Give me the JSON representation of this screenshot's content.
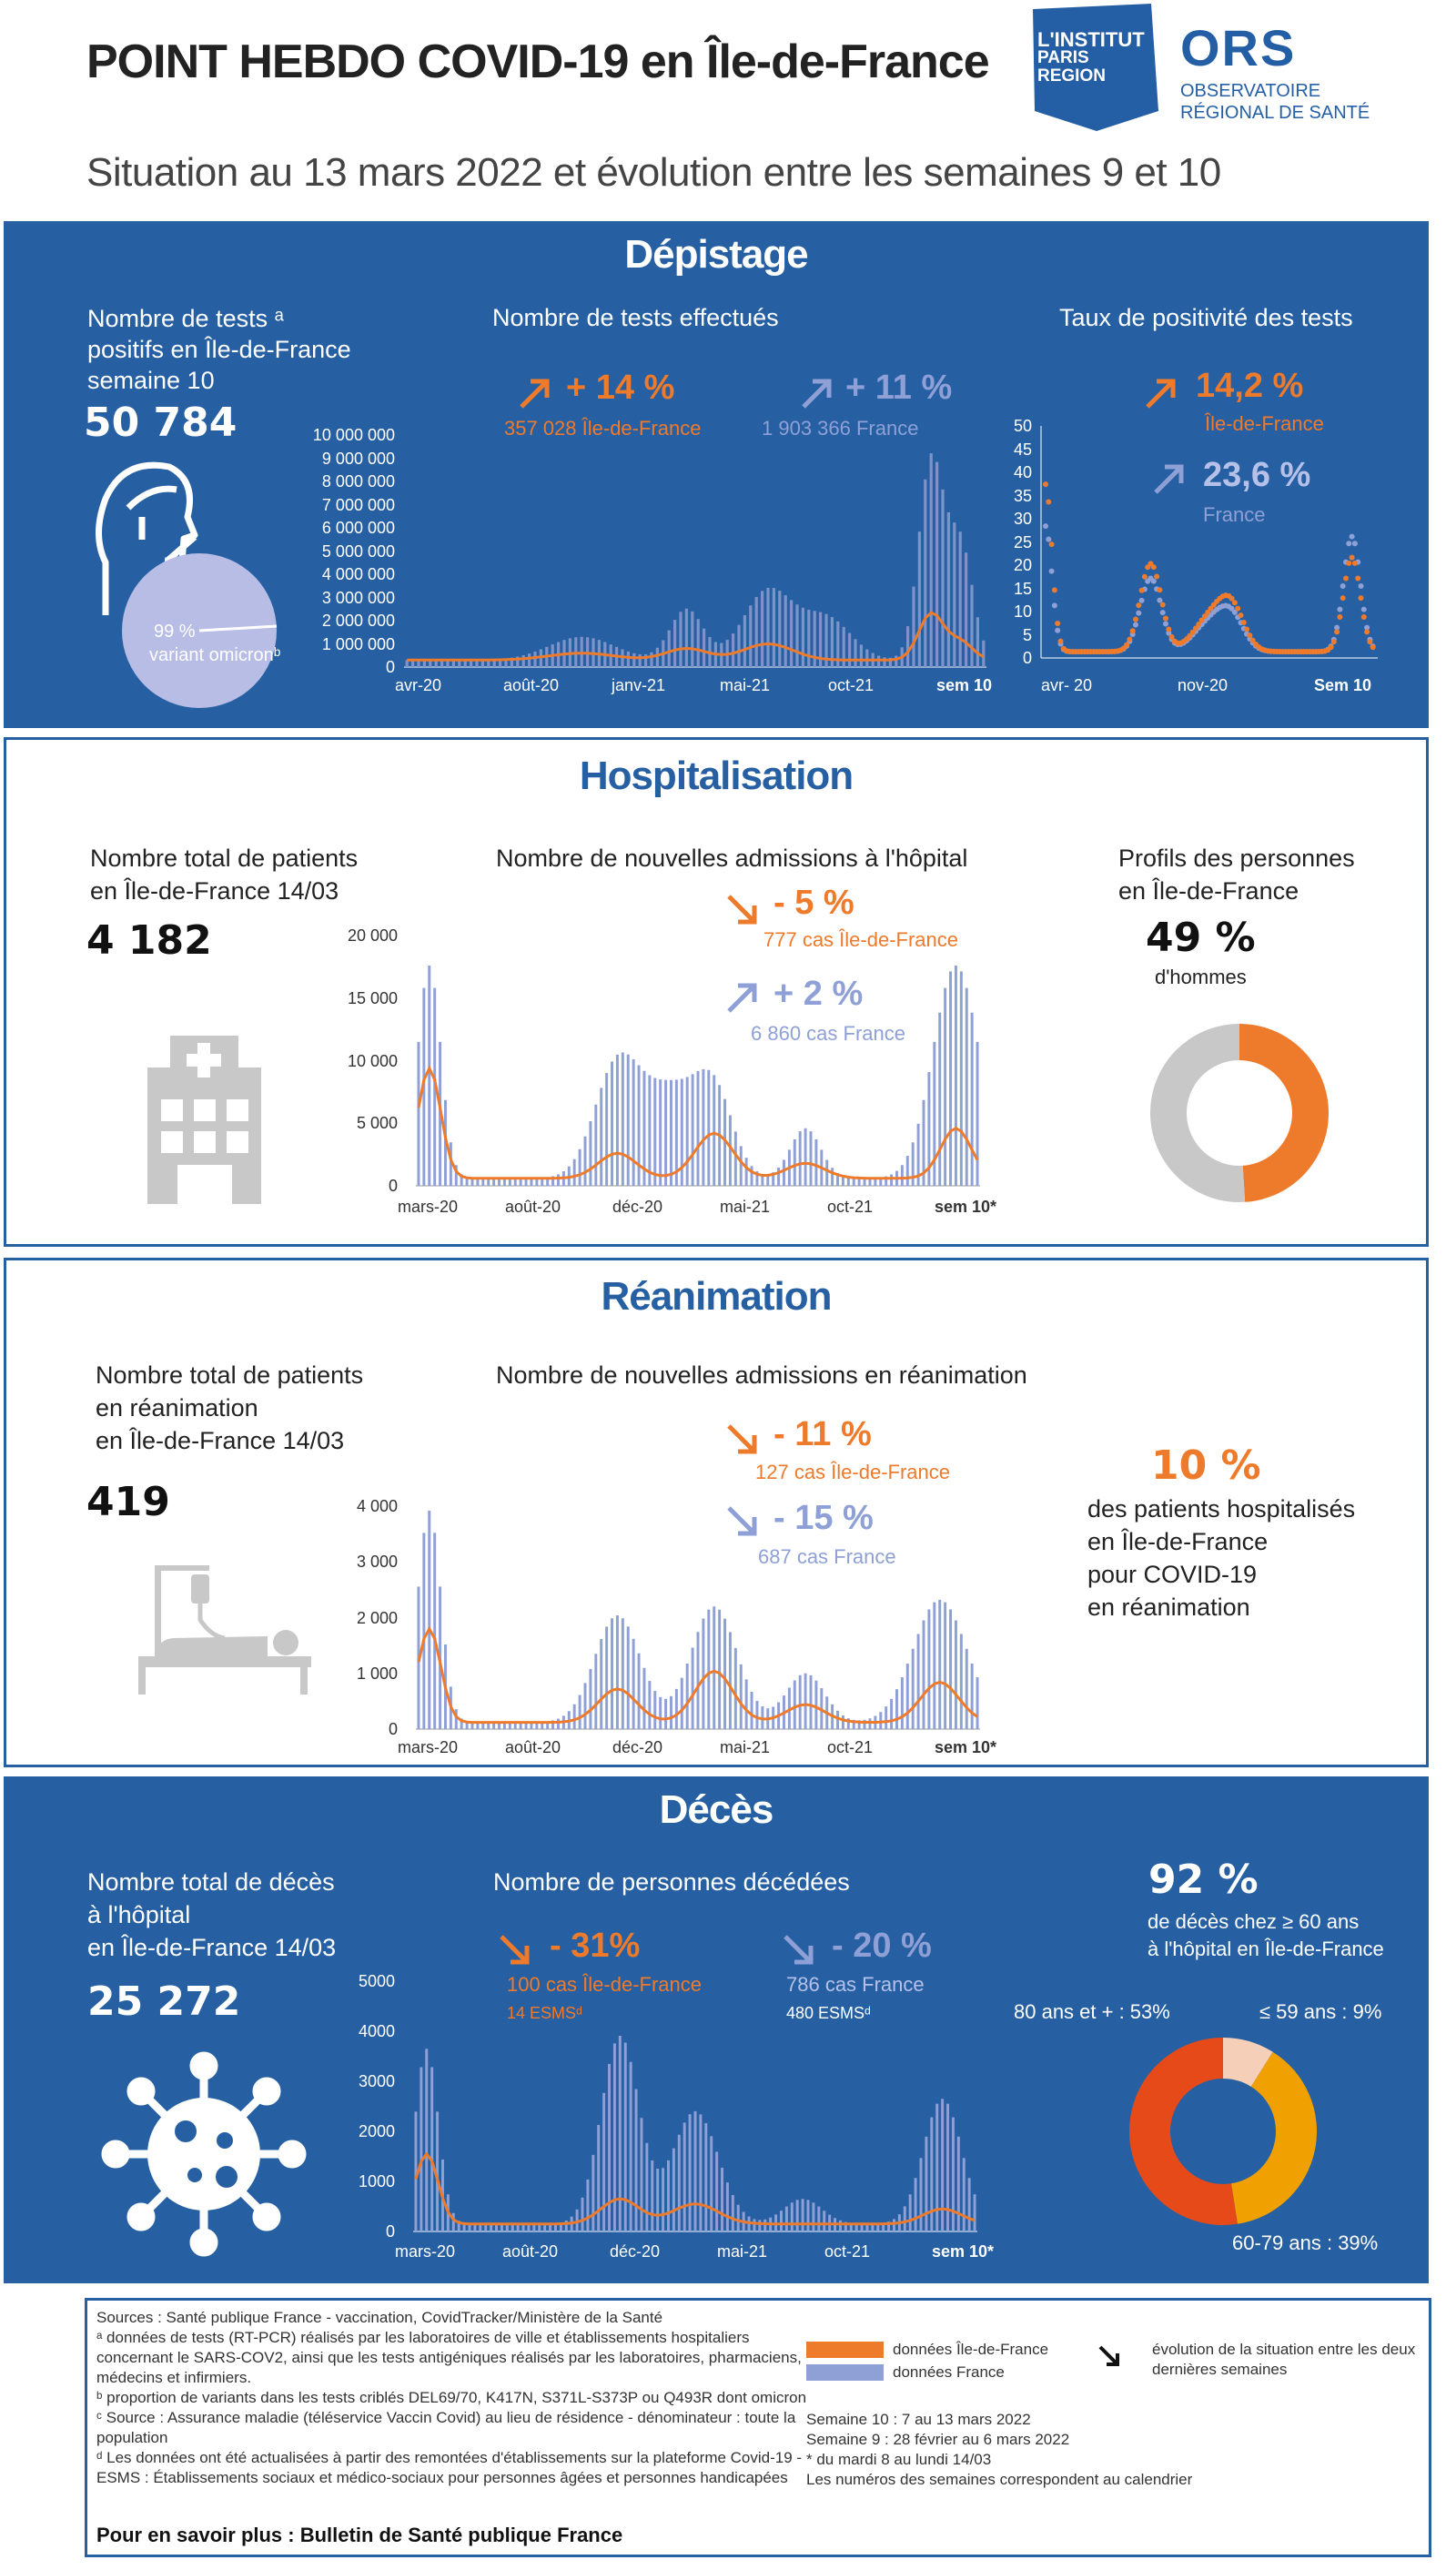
{
  "header": {
    "title": "POINT HEBDO COVID-19 en Île-de-France",
    "subtitle": "Situation au 13 mars 2022 et évolution entre les semaines 9 et 10",
    "logo_institut": [
      "L'INSTITUT",
      "PARIS",
      "REGION"
    ],
    "logo_ors": "ORS",
    "logo_ors_sub": [
      "OBSERVATOIRE",
      "RÉGIONAL DE SANTÉ"
    ]
  },
  "depistage": {
    "title": "Dépistage",
    "positive_label": [
      "Nombre de tests ᵃ",
      "positifs en Île-de-France",
      "semaine 10"
    ],
    "positive_value": "50 784",
    "omicron_pct": "99 %",
    "omicron_label": "variant omicronᵇ",
    "tests_title": "Nombre de tests effectués",
    "idf_change": "+ 14 %",
    "idf_count": "357 028 Île-de-France",
    "fr_change": "+ 11 %",
    "fr_count": "1 903 366  France",
    "tests_yticks": [
      "10 000 000",
      "9 000 000",
      "8 000 000",
      "7 000 000",
      "6 000 000",
      "5 000 000",
      "4 000 000",
      "3 000 000",
      "2 000 000",
      "1 000 000",
      "0"
    ],
    "tests_xticks": [
      "avr-20",
      "août-20",
      "janv-21",
      "mai-21",
      "oct-21",
      "sem 10"
    ],
    "pos_title": "Taux de positivité des tests",
    "pos_idf_value": "14,2 %",
    "pos_idf_label": "Île-de-France",
    "pos_fr_value": "23,6 %",
    "pos_fr_label": "France",
    "pos_yticks": [
      "50",
      "45",
      "40",
      "35",
      "30",
      "25",
      "20",
      "15",
      "10",
      "5",
      "0"
    ],
    "pos_xticks": [
      "avr- 20",
      "nov-20",
      "Sem 10"
    ]
  },
  "hospitalisation": {
    "title": "Hospitalisation",
    "total_label": [
      "Nombre total de patients",
      "en Île-de-France 14/03"
    ],
    "total_value": "4 182",
    "chart_title": "Nombre de nouvelles admissions à l'hôpital",
    "idf_change": "- 5 %",
    "idf_count": "777 cas Île-de-France",
    "fr_change": "+ 2 %",
    "fr_count": "6 860 cas France",
    "yticks": [
      "20 000",
      "15 000",
      "10 000",
      "5 000",
      "0"
    ],
    "xticks": [
      "mars-20",
      "août-20",
      "déc-20",
      "mai-21",
      "oct-21",
      "sem 10*"
    ],
    "profile_title": [
      "Profils des personnes",
      "en Île-de-France"
    ],
    "men_pct": "49 %",
    "men_label": "d'hommes",
    "men_fraction": 0.49
  },
  "reanimation": {
    "title": "Réanimation",
    "total_label": [
      "Nombre total de patients",
      "en réanimation",
      "en Île-de-France 14/03"
    ],
    "total_value": "419",
    "chart_title": "Nombre de nouvelles admissions en réanimation",
    "idf_change": "- 11 %",
    "idf_count": "127 cas Île-de-France",
    "fr_change": "- 15 %",
    "fr_count": "687 cas France",
    "yticks": [
      "4 000",
      "3 000",
      "2 000",
      "1 000",
      "0"
    ],
    "xticks": [
      "mars-20",
      "août-20",
      "déc-20",
      "mai-21",
      "oct-21",
      "sem 10*"
    ],
    "share_pct": "10 %",
    "share_label": [
      "des patients hospitalisés",
      "en Île-de-France",
      "pour COVID-19",
      "en réanimation"
    ]
  },
  "deces": {
    "title": "Décès",
    "total_label": [
      "Nombre total de décès",
      "à l'hôpital",
      "en Île-de-France 14/03"
    ],
    "total_value": "25 272",
    "chart_title": "Nombre de personnes décédées",
    "idf_change": "- 31%",
    "idf_count": "100 cas Île-de-France",
    "idf_esms": "14 ESMSᵈ",
    "fr_change": "- 20 %",
    "fr_count": "786 cas France",
    "fr_esms": "480 ESMSᵈ",
    "yticks": [
      "5000",
      "4000",
      "3000",
      "2000",
      "1000",
      "0"
    ],
    "xticks": [
      "mars-20",
      "août-20",
      "déc-20",
      "mai-21",
      "oct-21",
      "sem 10*"
    ],
    "old_pct": "92 %",
    "old_label": [
      "de décès chez ≥ 60 ans",
      "à l'hôpital en Île-de-France"
    ],
    "age_labels": [
      "80 ans et + : 53%",
      "≤ 59 ans : 9%",
      "60-79 ans : 39%"
    ],
    "age_shares": [
      53,
      9,
      39
    ]
  },
  "footer": {
    "sources": [
      "Sources : Santé publique France - vaccination, CovidTracker/Ministère de la Santé",
      "ᵃ  données de tests (RT-PCR) réalisés par les laboratoires de ville et établissements hospitaliers",
      "concernant le SARS-COV2, ainsi que les tests antigéniques réalisés par les laboratoires, pharmaciens,",
      "médecins et infirmiers.",
      " ᵇ proportion de variants dans les tests criblés DEL69/70, K417N, S371L-S373P ou Q493R dont omicron",
      "ᶜ Source : Assurance maladie (téléservice Vaccin Covid) au lieu de résidence - dénominateur : toute la population",
      "ᵈ Les données ont été actualisées à partir des remontées d'établissements sur la plateforme Covid-19 -",
      "ESMS : Établissements sociaux et  médico-sociaux pour personnes âgées et personnes handicapées"
    ],
    "more": "Pour en savoir plus : Bulletin de Santé publique France",
    "legend_idf": "données Île-de-France",
    "legend_fr": "données France",
    "legend_arrow": [
      "évolution de la situation entre les deux",
      "dernières semaines"
    ],
    "weeks": [
      "Semaine 10 :   7 au 13  mars 2022",
      "Semaine 9 :   28 février  au 6 mars 2022",
      "* du mardi  8 au lundi 14/03",
      "Les numéros des semaines correspondent au calendrier"
    ]
  },
  "colors": {
    "blue": "#2660a3",
    "orange": "#ee7a2b",
    "lavender": "#8ea0d6",
    "grey": "#c8c8c8"
  }
}
